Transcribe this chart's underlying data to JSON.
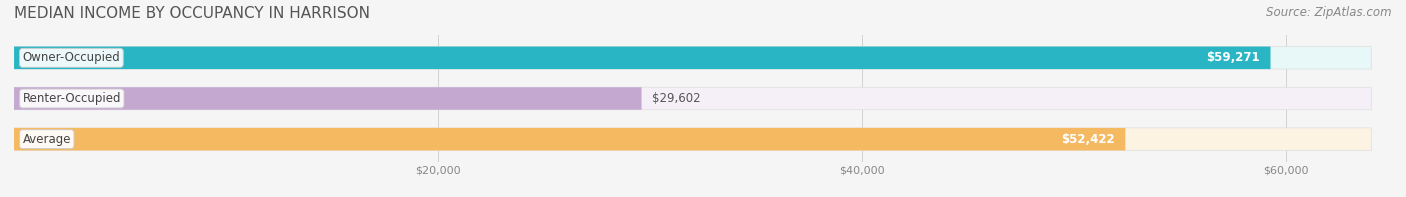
{
  "title": "MEDIAN INCOME BY OCCUPANCY IN HARRISON",
  "source": "Source: ZipAtlas.com",
  "categories": [
    "Owner-Occupied",
    "Renter-Occupied",
    "Average"
  ],
  "values": [
    59271,
    29602,
    52422
  ],
  "bar_colors": [
    "#29b5c3",
    "#c4a8d0",
    "#f5b962"
  ],
  "bar_bg_colors": [
    "#e8f7f8",
    "#f5f0f8",
    "#fdf3e3"
  ],
  "value_labels": [
    "$59,271",
    "$29,602",
    "$52,422"
  ],
  "label_inside": [
    true,
    false,
    true
  ],
  "label_positions": [
    "right_inside",
    "right_outside",
    "right_inside"
  ],
  "x_ticks": [
    20000,
    40000,
    60000
  ],
  "x_tick_labels": [
    "$20,000",
    "$40,000",
    "$60,000"
  ],
  "xlim": [
    0,
    65000
  ],
  "background_color": "#f5f5f5",
  "title_fontsize": 11,
  "source_fontsize": 8.5,
  "bar_height": 0.55,
  "bar_label_fontsize": 8.5,
  "category_label_fontsize": 8.5,
  "tick_fontsize": 8
}
